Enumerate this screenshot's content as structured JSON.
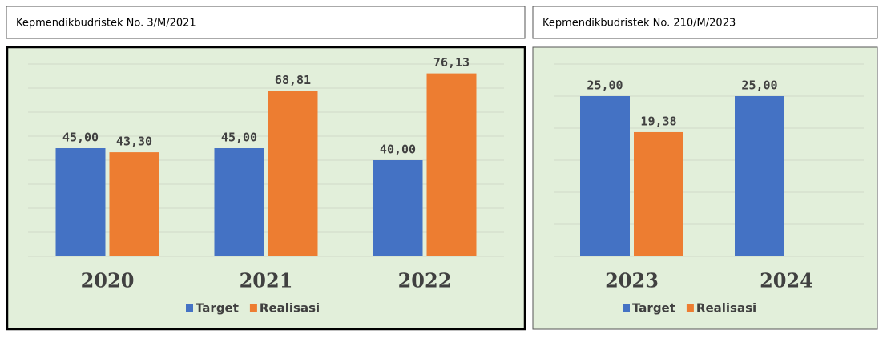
{
  "chart_data": [
    {
      "type": "bar",
      "title": "Kepmendikbudristek No. 3/M/2021",
      "categories": [
        "2020",
        "2021",
        "2022"
      ],
      "series": [
        {
          "name": "Target",
          "color": "#4472c4",
          "values": [
            45.0,
            45.0,
            40.0
          ],
          "value_labels": [
            "45,00",
            "45,00",
            "40,00"
          ]
        },
        {
          "name": "Realisasi",
          "color": "#ed7d31",
          "values": [
            43.3,
            68.81,
            76.13
          ],
          "value_labels": [
            "43,30",
            "68,81",
            "76,13"
          ]
        }
      ],
      "ylim": [
        0,
        80
      ],
      "yticks": [
        0,
        10,
        20,
        30,
        40,
        50,
        60,
        70,
        80
      ],
      "grid": true,
      "legend": "bottom"
    },
    {
      "type": "bar",
      "title": "Kepmendikbudristek No. 210/M/2023",
      "categories": [
        "2023",
        "2024"
      ],
      "series": [
        {
          "name": "Target",
          "color": "#4472c4",
          "values": [
            25.0,
            25.0
          ],
          "value_labels": [
            "25,00",
            "25,00"
          ]
        },
        {
          "name": "Realisasi",
          "color": "#ed7d31",
          "values": [
            19.38,
            null
          ],
          "value_labels": [
            "19,38",
            null
          ]
        }
      ],
      "ylim": [
        0,
        30
      ],
      "yticks": [
        0,
        5,
        10,
        15,
        20,
        25,
        30
      ],
      "grid": true,
      "legend": "bottom"
    }
  ]
}
